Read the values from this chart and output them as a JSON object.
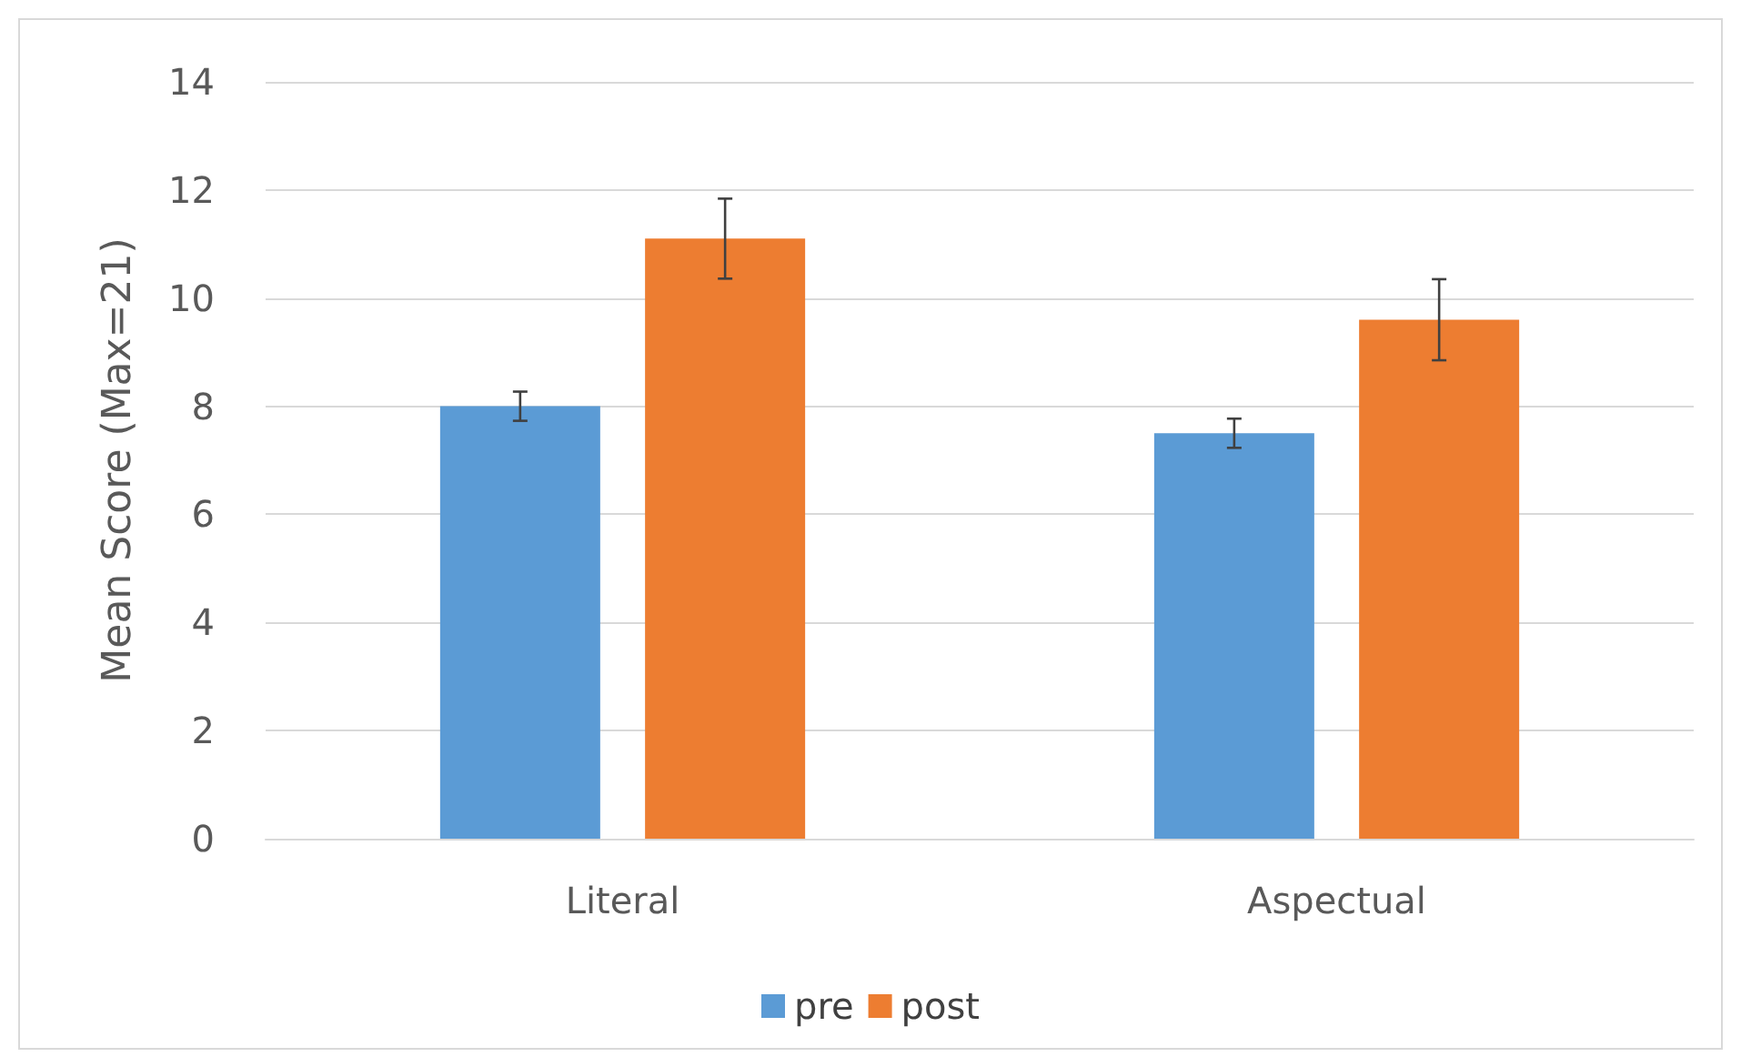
{
  "chart_data": {
    "type": "bar",
    "ylabel": "Mean Score (Max=21)",
    "categories": [
      "Literal",
      "Aspectual"
    ],
    "series": [
      {
        "name": "pre",
        "color": "#5b9bd5",
        "values": [
          8.0,
          7.5
        ],
        "errors": [
          0.27,
          0.27
        ]
      },
      {
        "name": "post",
        "color": "#ed7d31",
        "values": [
          11.1,
          9.6
        ],
        "errors": [
          0.74,
          0.75
        ]
      }
    ],
    "ylim": [
      0,
      14
    ],
    "yticks": [
      0,
      2,
      4,
      6,
      8,
      10,
      12,
      14
    ],
    "grid": "y",
    "legend": "bottom"
  }
}
